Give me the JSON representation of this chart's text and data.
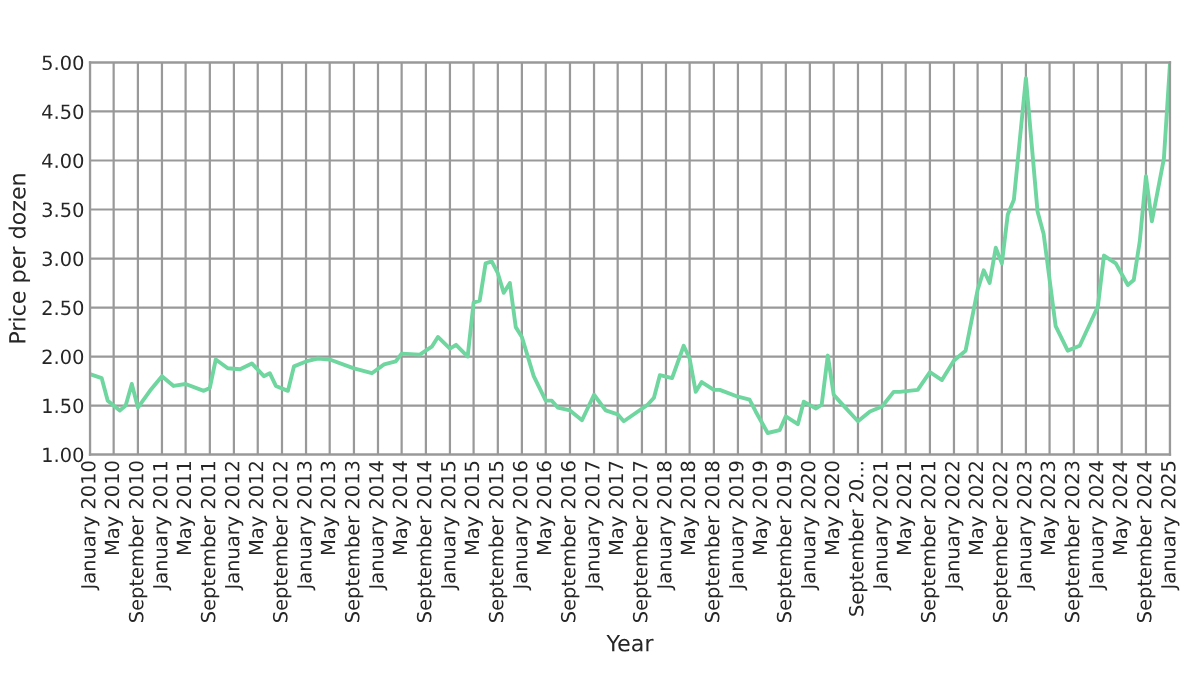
{
  "chart_data": {
    "type": "line",
    "xlabel": "Year",
    "ylabel": "Price per dozen",
    "x": [
      "2010-01",
      "2010-03",
      "2010-04",
      "2010-06",
      "2010-07",
      "2010-08",
      "2010-09",
      "2010-11",
      "2011-01",
      "2011-03",
      "2011-05",
      "2011-08",
      "2011-09",
      "2011-10",
      "2011-12",
      "2012-02",
      "2012-04",
      "2012-06",
      "2012-07",
      "2012-08",
      "2012-10",
      "2012-11",
      "2013-01",
      "2013-03",
      "2013-05",
      "2013-09",
      "2013-12",
      "2014-02",
      "2014-04",
      "2014-05",
      "2014-08",
      "2014-10",
      "2014-11",
      "2015-01",
      "2015-02",
      "2015-04",
      "2015-05",
      "2015-06",
      "2015-07",
      "2015-08",
      "2015-09",
      "2015-10",
      "2015-11",
      "2015-12",
      "2016-01",
      "2016-03",
      "2016-05",
      "2016-06",
      "2016-07",
      "2016-09",
      "2016-11",
      "2017-01",
      "2017-03",
      "2017-05",
      "2017-06",
      "2017-10",
      "2017-11",
      "2017-12",
      "2018-02",
      "2018-04",
      "2018-05",
      "2018-06",
      "2018-07",
      "2018-09",
      "2018-10",
      "2019-01",
      "2019-03",
      "2019-04",
      "2019-06",
      "2019-08",
      "2019-09",
      "2019-11",
      "2019-12",
      "2020-02",
      "2020-03",
      "2020-04",
      "2020-05",
      "2020-06",
      "2020-09",
      "2020-11",
      "2021-01",
      "2021-03",
      "2021-04",
      "2021-07",
      "2021-09",
      "2021-11",
      "2022-01",
      "2022-03",
      "2022-05",
      "2022-06",
      "2022-07",
      "2022-08",
      "2022-09",
      "2022-10",
      "2022-11",
      "2023-01",
      "2023-03",
      "2023-04",
      "2023-06",
      "2023-08",
      "2023-10",
      "2024-01",
      "2024-02",
      "2024-04",
      "2024-06",
      "2024-07",
      "2024-08",
      "2024-09",
      "2024-10",
      "2024-12",
      "2025-01"
    ],
    "series": [
      {
        "color": "#6fd6a0",
        "values": [
          1.82,
          1.78,
          1.55,
          1.45,
          1.5,
          1.72,
          1.48,
          1.65,
          1.8,
          1.7,
          1.72,
          1.65,
          1.68,
          1.97,
          1.88,
          1.87,
          1.93,
          1.8,
          1.83,
          1.7,
          1.65,
          1.9,
          1.95,
          1.98,
          1.97,
          1.88,
          1.83,
          1.92,
          1.95,
          2.03,
          2.02,
          2.1,
          2.2,
          2.08,
          2.12,
          2.0,
          2.55,
          2.57,
          2.95,
          2.97,
          2.85,
          2.65,
          2.75,
          2.3,
          2.2,
          1.8,
          1.55,
          1.55,
          1.48,
          1.45,
          1.35,
          1.61,
          1.45,
          1.41,
          1.34,
          1.51,
          1.58,
          1.81,
          1.78,
          2.11,
          1.98,
          1.64,
          1.74,
          1.66,
          1.66,
          1.59,
          1.56,
          1.44,
          1.22,
          1.25,
          1.39,
          1.31,
          1.54,
          1.47,
          1.51,
          2.01,
          1.61,
          1.54,
          1.34,
          1.44,
          1.49,
          1.64,
          1.64,
          1.66,
          1.84,
          1.76,
          1.96,
          2.06,
          2.68,
          2.88,
          2.75,
          3.11,
          2.95,
          3.45,
          3.6,
          4.84,
          3.48,
          3.25,
          2.31,
          2.06,
          2.11,
          2.51,
          3.03,
          2.95,
          2.73,
          2.78,
          3.18,
          3.84,
          3.38,
          4.02,
          4.99
        ]
      }
    ],
    "xlim": [
      "2010-01",
      "2025-01"
    ],
    "xticks": [
      {
        "value": "2010-01",
        "label": "January 2010"
      },
      {
        "value": "2010-05",
        "label": "May 2010"
      },
      {
        "value": "2010-09",
        "label": "September 2010"
      },
      {
        "value": "2011-01",
        "label": "January 2011"
      },
      {
        "value": "2011-05",
        "label": "May 2011"
      },
      {
        "value": "2011-09",
        "label": "September 2011"
      },
      {
        "value": "2012-01",
        "label": "January 2012"
      },
      {
        "value": "2012-05",
        "label": "May 2012"
      },
      {
        "value": "2012-09",
        "label": "September 2012"
      },
      {
        "value": "2013-01",
        "label": "January 2013"
      },
      {
        "value": "2013-05",
        "label": "May 2013"
      },
      {
        "value": "2013-09",
        "label": "September 2013"
      },
      {
        "value": "2014-01",
        "label": "January 2014"
      },
      {
        "value": "2014-05",
        "label": "May 2014"
      },
      {
        "value": "2014-09",
        "label": "September 2014"
      },
      {
        "value": "2015-01",
        "label": "January 2015"
      },
      {
        "value": "2015-05",
        "label": "May 2015"
      },
      {
        "value": "2015-09",
        "label": "September 2015"
      },
      {
        "value": "2016-01",
        "label": "January 2016"
      },
      {
        "value": "2016-05",
        "label": "May 2016"
      },
      {
        "value": "2016-09",
        "label": "September 2016"
      },
      {
        "value": "2017-01",
        "label": "January 2017"
      },
      {
        "value": "2017-05",
        "label": "May 2017"
      },
      {
        "value": "2017-09",
        "label": "September 2017"
      },
      {
        "value": "2018-01",
        "label": "January 2018"
      },
      {
        "value": "2018-05",
        "label": "May 2018"
      },
      {
        "value": "2018-09",
        "label": "September 2018"
      },
      {
        "value": "2019-01",
        "label": "January 2019"
      },
      {
        "value": "2019-05",
        "label": "May 2019"
      },
      {
        "value": "2019-09",
        "label": "September 2019"
      },
      {
        "value": "2020-01",
        "label": "January 2020"
      },
      {
        "value": "2020-05",
        "label": "May 2020"
      },
      {
        "value": "2020-09",
        "label": "September 20..."
      },
      {
        "value": "2021-01",
        "label": "January 2021"
      },
      {
        "value": "2021-05",
        "label": "May 2021"
      },
      {
        "value": "2021-09",
        "label": "September 2021"
      },
      {
        "value": "2022-01",
        "label": "January 2022"
      },
      {
        "value": "2022-05",
        "label": "May 2022"
      },
      {
        "value": "2022-09",
        "label": "September 2022"
      },
      {
        "value": "2023-01",
        "label": "January 2023"
      },
      {
        "value": "2023-05",
        "label": "May 2023"
      },
      {
        "value": "2023-09",
        "label": "September 2023"
      },
      {
        "value": "2024-01",
        "label": "January 2024"
      },
      {
        "value": "2024-05",
        "label": "May 2024"
      },
      {
        "value": "2024-09",
        "label": "September 2024"
      },
      {
        "value": "2025-01",
        "label": "January 2025"
      }
    ],
    "ylim": [
      1,
      5
    ],
    "yticks": [
      {
        "value": 1,
        "label": "1.00"
      },
      {
        "value": 1.5,
        "label": "1.50"
      },
      {
        "value": 2,
        "label": "2.00"
      },
      {
        "value": 2.5,
        "label": "2.50"
      },
      {
        "value": 3,
        "label": "3.00"
      },
      {
        "value": 3.5,
        "label": "3.50"
      },
      {
        "value": 4,
        "label": "4.00"
      },
      {
        "value": 4.5,
        "label": "4.50"
      },
      {
        "value": 5,
        "label": "5.00"
      }
    ],
    "grid": true,
    "marker": "none",
    "line_style": "solid"
  }
}
